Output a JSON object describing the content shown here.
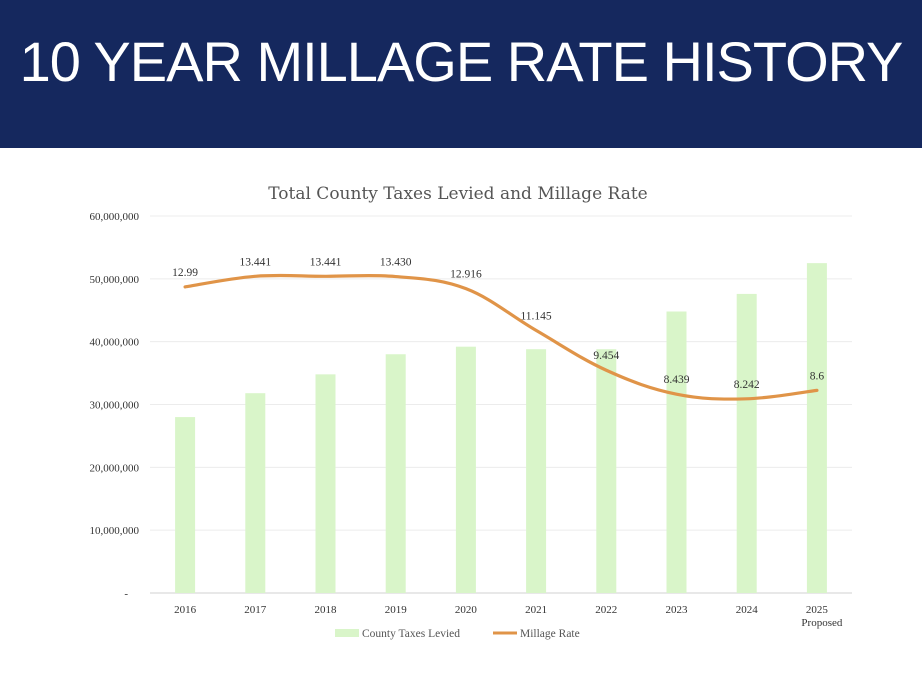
{
  "header": {
    "title": "10 YEAR MILLAGE RATE HISTORY"
  },
  "colors": {
    "banner": "#15285e",
    "bar": "#d9f5c9",
    "line": "#e09448"
  },
  "chart_data": {
    "type": "bar",
    "title": "Total County Taxes Levied and Millage Rate",
    "categories": [
      "2016",
      "2017",
      "2018",
      "2019",
      "2020",
      "2021",
      "2022",
      "2023",
      "2024",
      "2025"
    ],
    "category_sublabels": [
      "",
      "",
      "",
      "",
      "",
      "",
      "",
      "",
      "",
      "Proposed"
    ],
    "y_ticks": [
      "-",
      "10,000,000",
      "20,000,000",
      "30,000,000",
      "40,000,000",
      "50,000,000",
      "60,000,000"
    ],
    "ylim": [
      0,
      60000000
    ],
    "grid": true,
    "legend_position": "bottom",
    "series": [
      {
        "name": "County Taxes Levied",
        "type": "bar",
        "values": [
          28000000,
          31800000,
          34800000,
          38000000,
          39200000,
          38800000,
          38800000,
          44800000,
          47600000,
          52500000
        ]
      },
      {
        "name": "Millage Rate",
        "type": "line",
        "values": [
          12.99,
          13.441,
          13.441,
          13.43,
          12.916,
          11.145,
          9.454,
          8.439,
          8.242,
          8.6
        ],
        "labels": [
          "12.99",
          "13.441",
          "13.441",
          "13.430",
          "12.916",
          "11.145",
          "9.454",
          "8.439",
          "8.242",
          "8.6"
        ],
        "secondary_axis": true,
        "ylim": [
          0,
          16
        ]
      }
    ]
  }
}
